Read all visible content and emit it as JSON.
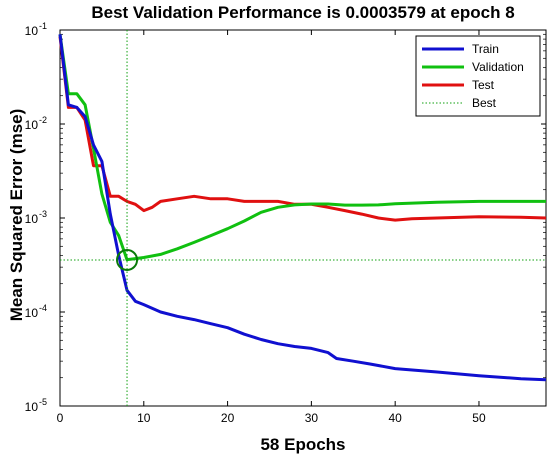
{
  "chart_data": {
    "type": "line",
    "title": "Best Validation Performance is 0.0003579 at epoch 8",
    "xlabel": "58 Epochs",
    "ylabel": "Mean Squared Error  (mse)",
    "xlim": [
      0,
      58
    ],
    "ylim": [
      1e-05,
      0.1
    ],
    "yscale": "log",
    "xticks": [
      0,
      10,
      20,
      30,
      40,
      50
    ],
    "yticks": [
      {
        "base": "10",
        "exp": "-5",
        "value": 1e-05
      },
      {
        "base": "10",
        "exp": "-4",
        "value": 0.0001
      },
      {
        "base": "10",
        "exp": "-3",
        "value": 0.001
      },
      {
        "base": "10",
        "exp": "-2",
        "value": 0.01
      },
      {
        "base": "10",
        "exp": "-1",
        "value": 0.1
      }
    ],
    "legend_position": "top-right",
    "series": [
      {
        "name": "Train",
        "color": "#1010d0",
        "x": [
          0,
          1,
          2,
          3,
          4,
          5,
          6,
          7,
          8,
          9,
          10,
          12,
          14,
          16,
          18,
          20,
          22,
          24,
          26,
          28,
          30,
          32,
          33,
          35,
          37,
          40,
          45,
          50,
          55,
          58
        ],
        "y": [
          0.09,
          0.016,
          0.015,
          0.012,
          0.006,
          0.004,
          0.0011,
          0.0004,
          0.00017,
          0.00013,
          0.00012,
          0.0001,
          9e-05,
          8.3e-05,
          7.5e-05,
          6.8e-05,
          5.8e-05,
          5.1e-05,
          4.6e-05,
          4.3e-05,
          4.1e-05,
          3.7e-05,
          3.2e-05,
          3e-05,
          2.8e-05,
          2.5e-05,
          2.3e-05,
          2.1e-05,
          1.95e-05,
          1.9e-05
        ]
      },
      {
        "name": "Validation",
        "color": "#10c010",
        "x": [
          0,
          1,
          2,
          3,
          4,
          5,
          6,
          7,
          8,
          9,
          10,
          12,
          14,
          16,
          18,
          20,
          22,
          24,
          26,
          28,
          30,
          32,
          34,
          36,
          38,
          40,
          45,
          50,
          55,
          58
        ],
        "y": [
          0.09,
          0.021,
          0.021,
          0.016,
          0.0055,
          0.0018,
          0.0009,
          0.00065,
          0.00036,
          0.00037,
          0.00038,
          0.00041,
          0.00047,
          0.00055,
          0.00065,
          0.00077,
          0.00093,
          0.00115,
          0.0013,
          0.00138,
          0.00141,
          0.00141,
          0.00137,
          0.00137,
          0.00138,
          0.00142,
          0.00147,
          0.0015,
          0.0015,
          0.0015
        ]
      },
      {
        "name": "Test",
        "color": "#e01010",
        "x": [
          0,
          1,
          2,
          3,
          4,
          5,
          6,
          7,
          8,
          9,
          10,
          11,
          12,
          14,
          16,
          18,
          20,
          22,
          24,
          26,
          28,
          30,
          32,
          34,
          36,
          38,
          40,
          42,
          45,
          50,
          55,
          58
        ],
        "y": [
          0.085,
          0.015,
          0.015,
          0.011,
          0.0036,
          0.0036,
          0.0017,
          0.0017,
          0.0015,
          0.0014,
          0.0012,
          0.0013,
          0.0015,
          0.0016,
          0.0017,
          0.0016,
          0.0016,
          0.0015,
          0.0015,
          0.0015,
          0.0014,
          0.0014,
          0.0013,
          0.0012,
          0.0011,
          0.001,
          0.00095,
          0.00098,
          0.001,
          0.00103,
          0.00102,
          0.001
        ]
      }
    ],
    "best": {
      "name": "Best",
      "color": "#10a010",
      "epoch": 8,
      "value": 0.0003579,
      "marker": "circle"
    }
  }
}
